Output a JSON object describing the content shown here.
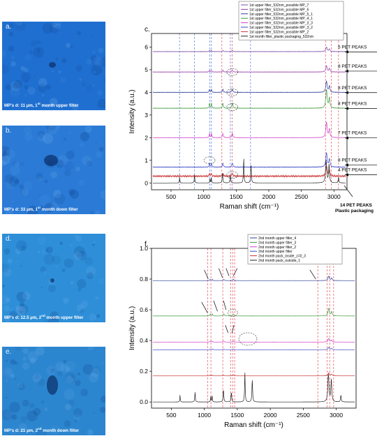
{
  "photos": [
    {
      "letter": "a.",
      "caption": "MP’s d: 11 µm, 1st month upper filter",
      "color": "#1f6fd0"
    },
    {
      "letter": "b.",
      "caption": "MP’s d: 33 µm, 1st month down filter",
      "color": "#2a7ad6"
    },
    {
      "letter": "d.",
      "caption": "MP’s d: 12.5 µm, 2nd month upper filter",
      "color": "#2e8fd8"
    },
    {
      "letter": "e.",
      "caption": "MP’s d: 21 µm, 2nd month down filter",
      "color": "#2c86cf"
    }
  ],
  "chart_data": [
    {
      "panel": "c.",
      "type": "line",
      "xlabel": "Raman shift (cm⁻¹)",
      "ylabel": "Intensity (a.u.)",
      "xlim": [
        200,
        3200
      ],
      "ylim": [
        -0.3,
        6.6
      ],
      "xticks": [
        500,
        1000,
        1500,
        2000,
        2500,
        3000
      ],
      "yticks": [
        0,
        1,
        2,
        3,
        4,
        5,
        6
      ],
      "vlines_blue": [
        630,
        860,
        1095,
        1120,
        1410,
        1720
      ],
      "vlines_red": [
        1280,
        1440,
        2870,
        2960,
        3070
      ],
      "series": [
        {
          "name": "1st upper filter_532nm_possible MP_7",
          "color": "#7a4fa8",
          "offset": 5.8,
          "peak": 0.22,
          "noise": 0.015
        },
        {
          "name": "1st upper filter_532nm_possible MP_6",
          "color": "#9b39a8",
          "offset": 4.9,
          "peak": 0.3,
          "noise": 0.015
        },
        {
          "name": "1st upper filter_532nm_possible MP_5_1",
          "color": "#2c3e98",
          "offset": 4.0,
          "peak": 0.55,
          "noise": 0.015
        },
        {
          "name": "1st upper filter_532nm_possible MP_4_1",
          "color": "#3a9a3a",
          "offset": 3.3,
          "peak": 0.9,
          "noise": 0.015
        },
        {
          "name": "1st upper filter_532nm_possible MP_3_3",
          "color": "#d23cc8",
          "offset": 2.0,
          "peak": 0.75,
          "noise": 0.01
        },
        {
          "name": "1st upper filter_532nm_possible MP_3_2",
          "color": "#3a48c8",
          "offset": 0.7,
          "peak": 0.7,
          "noise": 0.02
        },
        {
          "name": "1st upper filter_532nm_possible MP_2",
          "color": "#c83232",
          "offset": 0.3,
          "peak": 0.5,
          "noise": 0.05
        },
        {
          "name": "1st month filter_plastic packaging_532nm",
          "color": "#222222",
          "offset": 0.0,
          "peak": 0.6,
          "noise": 0.0,
          "pet": true
        }
      ],
      "annotations": [
        {
          "text": "5 PET PEAKS",
          "y": 5.85
        },
        {
          "text": "8 PET PEAKS",
          "y": 5.0
        },
        {
          "text": "8 PET PEAKS",
          "y": 4.05
        },
        {
          "text": "8 PET PEAKS",
          "y": 3.35
        },
        {
          "text": "7 PET PEAKS",
          "y": 2.05
        },
        {
          "text": "8 PET PEAKS",
          "y": 0.85
        },
        {
          "text": "4 PET PEAKS",
          "y": 0.42
        }
      ],
      "bottom_note": [
        "14 PET PEAKS",
        "Plastic packaging"
      ]
    },
    {
      "panel": "f.",
      "type": "line",
      "xlabel": "Raman shift (cm⁻¹)",
      "ylabel": "Intensity (a.u.)",
      "xlim": [
        200,
        3300
      ],
      "ylim": [
        -0.04,
        1.0
      ],
      "xticks": [
        500,
        1000,
        1500,
        2000,
        2500,
        3000
      ],
      "yticks": [
        0.0,
        0.2,
        0.4,
        0.6,
        0.8,
        1.0
      ],
      "vlines_red": [
        1050,
        1100,
        1280,
        1400,
        1430,
        1460,
        2720,
        2860,
        2900,
        2960
      ],
      "series": [
        {
          "name": "2nd month upper filter_4",
          "color": "#2c3e98",
          "offset": 0.79,
          "peak": 0.18,
          "noise": 0.004
        },
        {
          "name": "2nd month upper filter_3",
          "color": "#3a9a3a",
          "offset": 0.56,
          "peak": 0.3,
          "noise": 0.004
        },
        {
          "name": "2nd month upper filter_2",
          "color": "#d23cc8",
          "offset": 0.39,
          "peak": 0.14,
          "noise": 0.005
        },
        {
          "name": "2nd month upper filter",
          "color": "#3a48c8",
          "offset": 0.34,
          "peak": 0.1,
          "noise": 0.004
        },
        {
          "name": "2nd month pack_inside_z=0_3",
          "color": "#c83232",
          "offset": 0.17,
          "peak": 0.12,
          "noise": 0.005
        },
        {
          "name": "2nd month pack_outside_1",
          "color": "#222222",
          "offset": 0.0,
          "peak": 0.15,
          "noise": 0.0,
          "pet": true
        }
      ]
    }
  ]
}
